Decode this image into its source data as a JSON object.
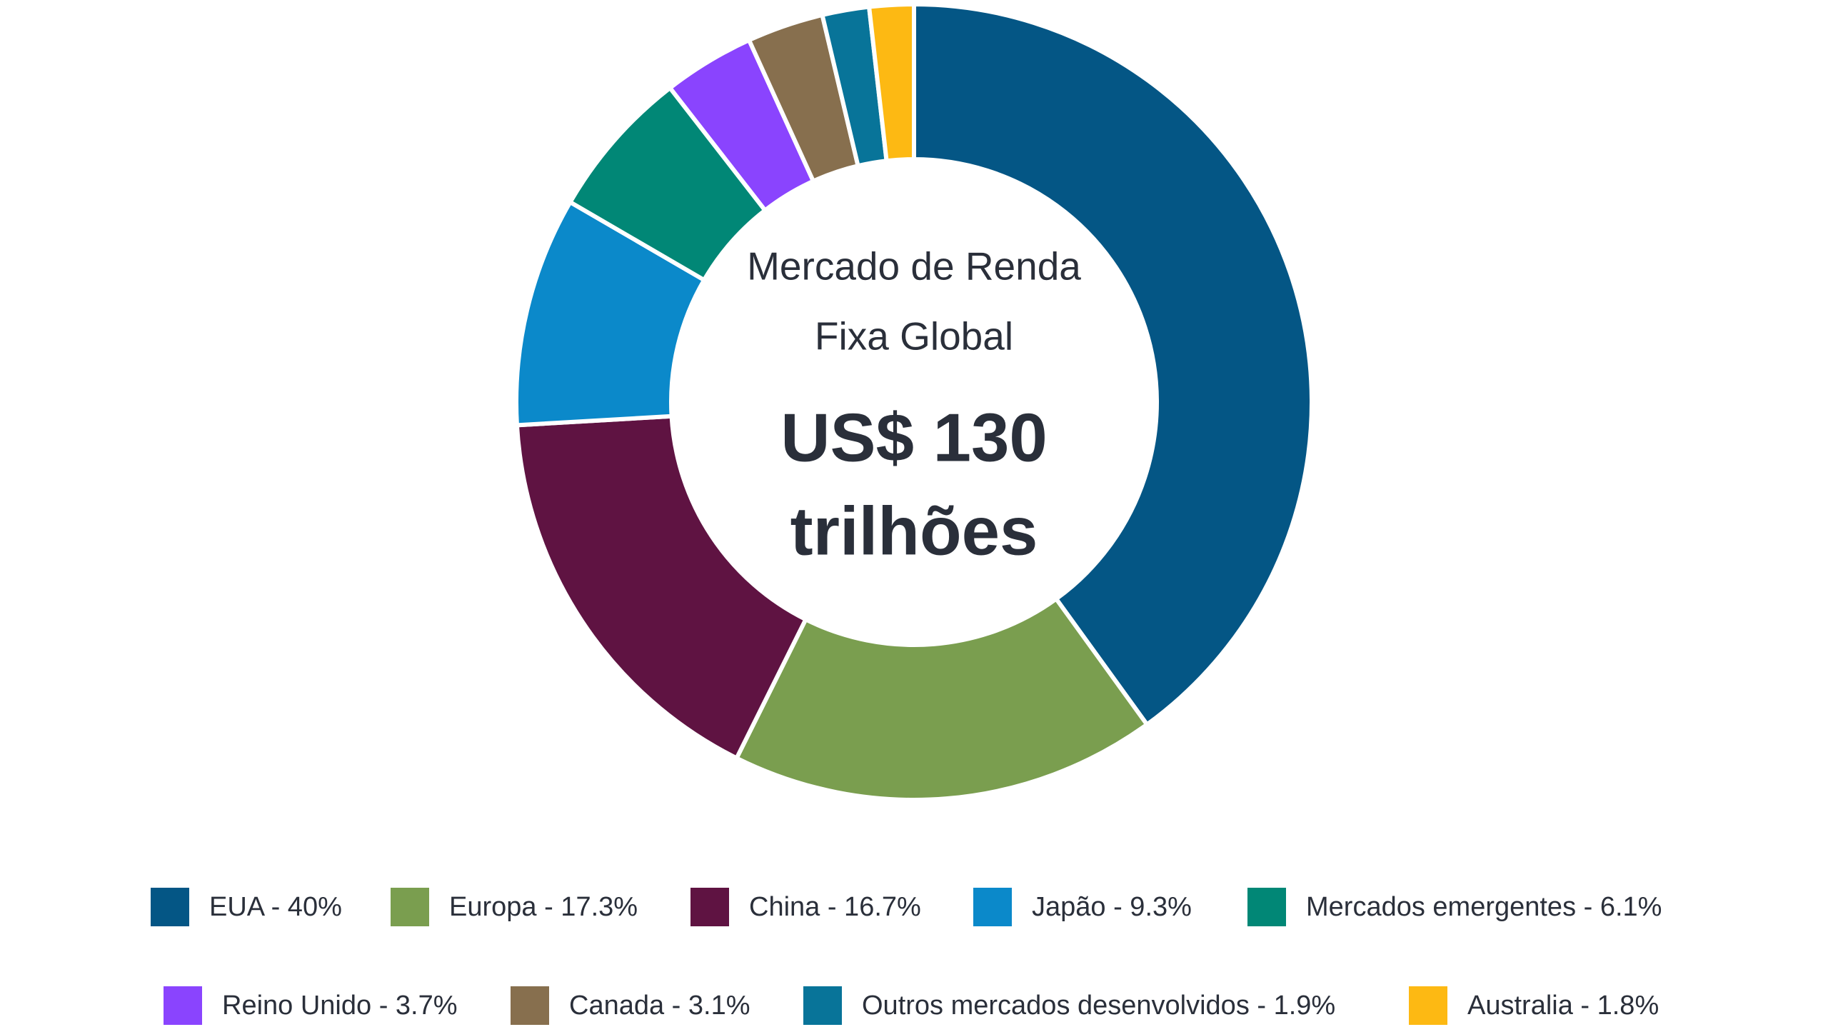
{
  "chart_data": {
    "type": "donut",
    "center_label": [
      "Mercado de Renda",
      "Fixa Global"
    ],
    "center_value": [
      "US$ 130",
      "trilhões"
    ],
    "categories": [
      "EUA - 40%",
      "Europa - 17.3%",
      "China - 16.7%",
      "Japão - 9.3%",
      "Mercados emergentes - 6.1%",
      "Reino Unido - 3.7%",
      "Canada - 3.1%",
      "Outros mercados desenvolvidos - 1.9%",
      "Australia - 1.8%"
    ],
    "values": [
      40,
      17.3,
      16.7,
      9.3,
      6.1,
      3.7,
      3.1,
      1.9,
      1.8
    ],
    "colors": [
      "#045685",
      "#7a9e4f",
      "#5f1342",
      "#0b89ca",
      "#018776",
      "#8a44fe",
      "#876f4e",
      "#087499",
      "#fdb913"
    ]
  }
}
